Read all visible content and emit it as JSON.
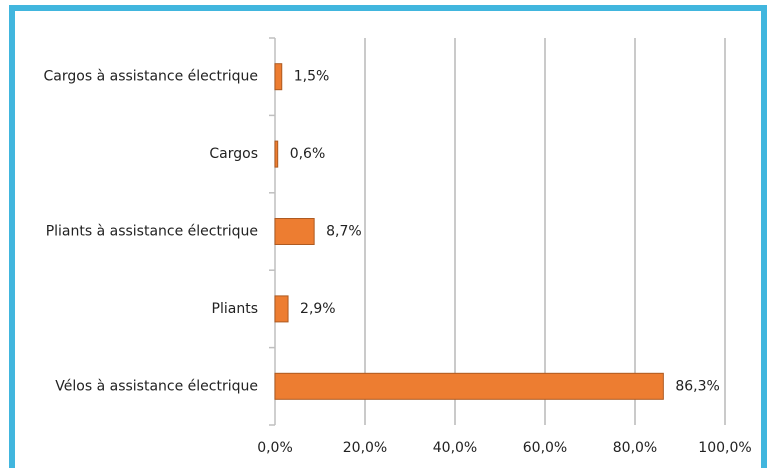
{
  "chart_data": {
    "type": "bar",
    "orientation": "horizontal",
    "categories": [
      "Cargos à assistance électrique",
      "Cargos",
      "Pliants à assistance électrique",
      "Pliants",
      "Vélos à assistance électrique"
    ],
    "values": [
      1.5,
      0.6,
      8.7,
      2.9,
      86.3
    ],
    "value_labels": [
      "1,5%",
      "0,6%",
      "8,7%",
      "2,9%",
      "86,3%"
    ],
    "color": "#ed7d31",
    "xlim": [
      0,
      100
    ],
    "xticks": [
      {
        "value": 0,
        "label": "0,0%"
      },
      {
        "value": 20,
        "label": "20,0%"
      },
      {
        "value": 40,
        "label": "40,0%"
      },
      {
        "value": 60,
        "label": "60,0%"
      },
      {
        "value": 80,
        "label": "80,0%"
      },
      {
        "value": 100,
        "label": "100,0%"
      }
    ],
    "grid": true
  }
}
